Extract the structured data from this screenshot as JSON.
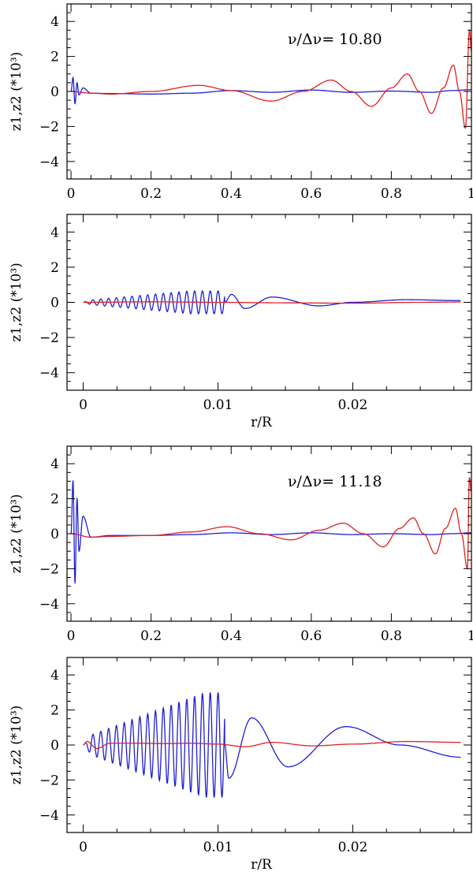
{
  "chart_data": [
    {
      "type": "line",
      "ylabel": "z1,z2 (*10³)",
      "xlabel": "",
      "annotation": "ν/Δν=  10.80",
      "xlim": [
        -0.01,
        1.0
      ],
      "ylim": [
        -5,
        5
      ],
      "xticks": [
        0,
        0.2,
        0.4,
        0.6,
        0.8,
        1
      ],
      "xtick_labels": [
        "0",
        "0.2",
        "0.4",
        "0.6",
        "0.8",
        "1"
      ],
      "yticks": [
        -4,
        -2,
        0,
        2,
        4
      ],
      "ytick_labels": [
        "−4",
        "−2",
        "0",
        "2",
        "4"
      ],
      "series": [
        {
          "color": "#1f1fd2",
          "x": [
            0.0,
            0.005,
            0.01,
            0.015,
            0.02,
            0.03,
            0.05,
            0.1,
            0.2,
            0.3,
            0.4,
            0.5,
            0.6,
            0.7,
            0.8,
            0.9,
            0.95,
            1.0
          ],
          "y": [
            0,
            0.8,
            -0.7,
            0.5,
            -0.2,
            0.2,
            -0.1,
            -0.12,
            -0.15,
            -0.1,
            0.05,
            -0.05,
            0.08,
            -0.05,
            0.02,
            -0.05,
            0.05,
            0.1
          ]
        },
        {
          "color": "#e02020",
          "x": [
            0.0,
            0.05,
            0.1,
            0.2,
            0.32,
            0.4,
            0.5,
            0.58,
            0.65,
            0.7,
            0.75,
            0.8,
            0.84,
            0.87,
            0.9,
            0.93,
            0.955,
            0.97,
            0.985,
            0.995,
            1.0
          ],
          "y": [
            0,
            -0.1,
            -0.15,
            0.0,
            0.35,
            0.05,
            -0.55,
            0.0,
            0.65,
            0.0,
            -0.85,
            0.2,
            1.0,
            0.0,
            -1.25,
            0.2,
            1.5,
            0.0,
            -2.1,
            3.5,
            2.3
          ]
        }
      ]
    },
    {
      "type": "line",
      "ylabel": "z1,z2 (*10³)",
      "xlabel": "r/R",
      "xlim": [
        -0.0012,
        0.0288
      ],
      "ylim": [
        -5,
        5
      ],
      "xticks": [
        0,
        0.01,
        0.02
      ],
      "xtick_labels": [
        "0",
        "0.01",
        "0.02"
      ],
      "yticks": [
        -4,
        -2,
        0,
        2,
        4
      ],
      "ytick_labels": [
        "−4",
        "−2",
        "0",
        "2",
        "4"
      ],
      "series": [
        {
          "color": "#1f1fd2",
          "osc": {
            "x_end": 0.0105,
            "period": 0.00058,
            "amp_start": 0.1,
            "amp_peak": 0.65,
            "peak_at": 0.008
          },
          "x": [
            0.0105,
            0.011,
            0.012,
            0.014,
            0.0175,
            0.02,
            0.024,
            0.028
          ],
          "y": [
            0.0,
            0.45,
            -0.35,
            0.3,
            -0.2,
            0.0,
            0.15,
            0.1
          ]
        },
        {
          "color": "#e02020",
          "x": [
            0.0,
            0.005,
            0.01,
            0.015,
            0.02,
            0.025,
            0.028
          ],
          "y": [
            0.0,
            0.03,
            0.0,
            -0.03,
            -0.05,
            0.0,
            0.02
          ]
        }
      ]
    },
    {
      "type": "line",
      "ylabel": "z1,z2 (*10³)",
      "xlabel": "",
      "annotation": "ν/Δν=  11.18",
      "xlim": [
        -0.01,
        1.0
      ],
      "ylim": [
        -5,
        5
      ],
      "xticks": [
        0,
        0.2,
        0.4,
        0.6,
        0.8,
        1
      ],
      "xtick_labels": [
        "0",
        "0.2",
        "0.4",
        "0.6",
        "0.8",
        "1"
      ],
      "yticks": [
        -4,
        -2,
        0,
        2,
        4
      ],
      "ytick_labels": [
        "−4",
        "−2",
        "0",
        "2",
        "4"
      ],
      "series": [
        {
          "color": "#1f1fd2",
          "x": [
            0.0,
            0.005,
            0.01,
            0.015,
            0.02,
            0.03,
            0.05,
            0.1,
            0.2,
            0.3,
            0.4,
            0.5,
            0.6,
            0.7,
            0.8,
            0.9,
            0.95,
            1.0
          ],
          "y": [
            0,
            3.0,
            -2.8,
            2.0,
            -1.0,
            1.0,
            -0.2,
            -0.1,
            -0.1,
            -0.05,
            0.05,
            -0.05,
            0.05,
            -0.05,
            0.0,
            -0.05,
            0.0,
            0.05
          ]
        },
        {
          "color": "#e02020",
          "x": [
            0.0,
            0.05,
            0.1,
            0.2,
            0.3,
            0.39,
            0.47,
            0.55,
            0.62,
            0.68,
            0.73,
            0.78,
            0.82,
            0.855,
            0.88,
            0.91,
            0.935,
            0.96,
            0.975,
            0.99,
            0.995,
            1.0
          ],
          "y": [
            0,
            -0.2,
            -0.15,
            -0.1,
            0.1,
            0.4,
            0.0,
            -0.35,
            0.2,
            0.6,
            0.0,
            -0.75,
            0.3,
            0.9,
            0.0,
            -1.15,
            0.3,
            1.45,
            0.0,
            -2.0,
            3.2,
            2.4
          ]
        }
      ]
    },
    {
      "type": "line",
      "ylabel": "z1,z2 (*10³)",
      "xlabel": "r/R",
      "xlim": [
        -0.0012,
        0.0288
      ],
      "ylim": [
        -5,
        5
      ],
      "xticks": [
        0,
        0.01,
        0.02
      ],
      "xtick_labels": [
        "0",
        "0.01",
        "0.02"
      ],
      "yticks": [
        -4,
        -2,
        0,
        2,
        4
      ],
      "ytick_labels": [
        "−4",
        "−2",
        "0",
        "2",
        "4"
      ],
      "series": [
        {
          "color": "#1f1fd2",
          "osc": {
            "x_end": 0.0105,
            "period": 0.00058,
            "amp_start": 0.4,
            "amp_peak": 3.0,
            "peak_at": 0.009
          },
          "x": [
            0.0105,
            0.0108,
            0.0125,
            0.0152,
            0.0195,
            0.0235,
            0.028
          ],
          "y": [
            0.0,
            -1.9,
            1.55,
            -1.25,
            1.05,
            0.0,
            -0.7
          ]
        },
        {
          "color": "#e02020",
          "x": [
            0.0,
            0.0003,
            0.001,
            0.002,
            0.004,
            0.006,
            0.008,
            0.01,
            0.012,
            0.014,
            0.017,
            0.02,
            0.024,
            0.028
          ],
          "y": [
            0.0,
            0.2,
            -0.2,
            0.1,
            0.1,
            0.08,
            0.1,
            0.05,
            -0.1,
            0.15,
            -0.05,
            0.05,
            0.2,
            0.15
          ]
        }
      ]
    }
  ]
}
